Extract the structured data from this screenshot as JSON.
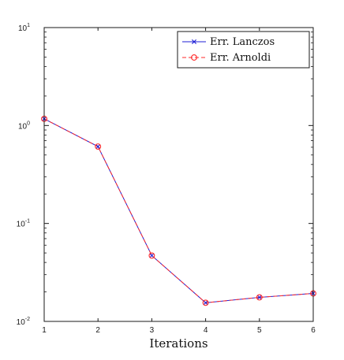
{
  "chart_data": {
    "type": "line",
    "title": "",
    "xlabel": "Iterations",
    "ylabel": "",
    "y_scale": "log",
    "xlim": [
      1,
      6
    ],
    "ylim": [
      0.01,
      10
    ],
    "x_ticks": [
      {
        "value": 1,
        "label": "1"
      },
      {
        "value": 2,
        "label": "2"
      },
      {
        "value": 3,
        "label": "3"
      },
      {
        "value": 4,
        "label": "4"
      },
      {
        "value": 5,
        "label": "5"
      },
      {
        "value": 6,
        "label": "6"
      }
    ],
    "y_ticks": [
      {
        "value": 0.01,
        "base": "10",
        "exp": "-2"
      },
      {
        "value": 0.1,
        "base": "10",
        "exp": "-1"
      },
      {
        "value": 1,
        "base": "10",
        "exp": "0"
      },
      {
        "value": 10,
        "base": "10",
        "exp": "1"
      }
    ],
    "grid": false,
    "legend_position": "top-right",
    "x": [
      1,
      2,
      3,
      4,
      5,
      6
    ],
    "series": [
      {
        "name": "Err. Lanczos",
        "values": [
          1.17,
          0.61,
          0.047,
          0.0155,
          0.0176,
          0.0193
        ],
        "color": "#1f1fd6",
        "marker": "x",
        "line_style": "solid"
      },
      {
        "name": "Err. Arnoldi",
        "values": [
          1.17,
          0.61,
          0.047,
          0.0155,
          0.0176,
          0.0193
        ],
        "color": "#ff2a2a",
        "marker": "circle",
        "line_style": "dashed"
      }
    ]
  }
}
